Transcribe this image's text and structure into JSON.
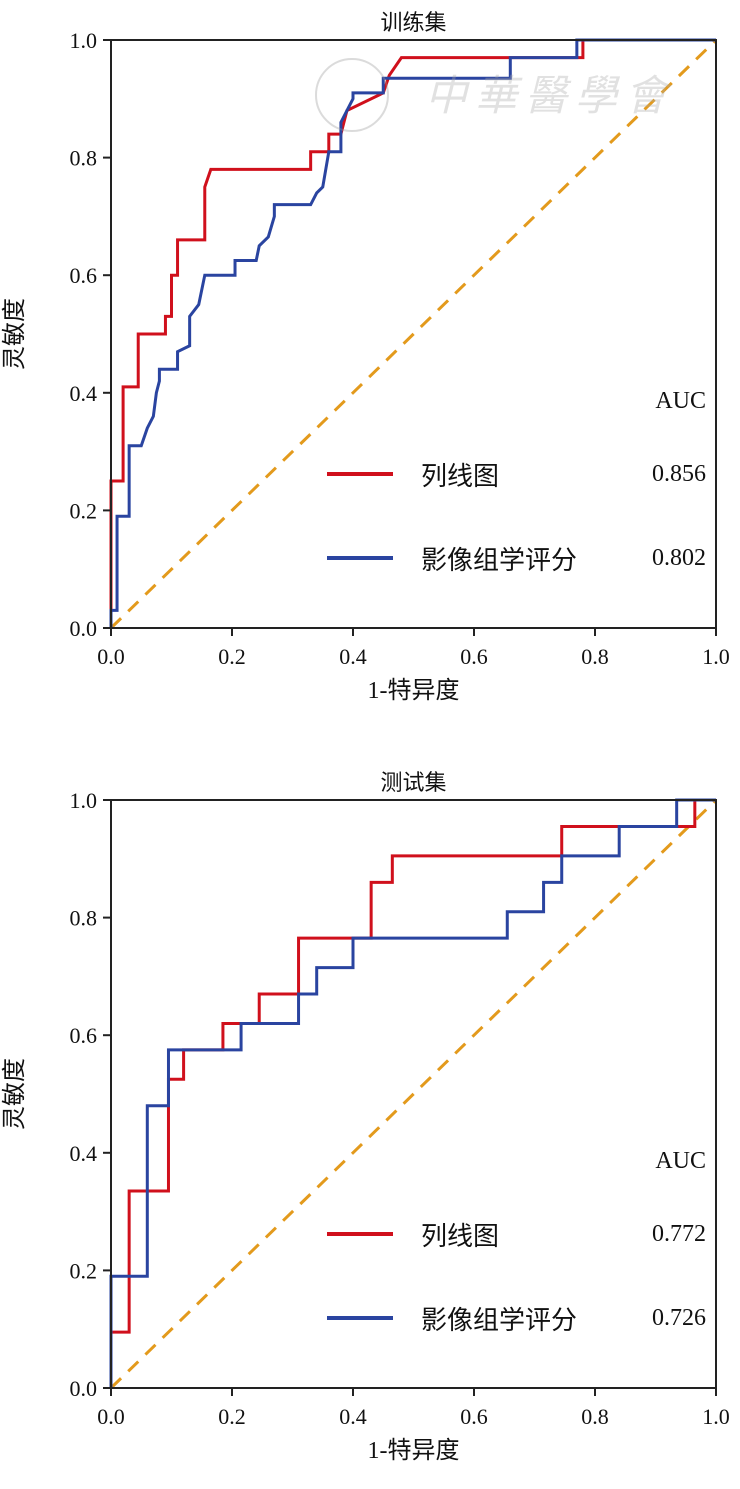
{
  "watermark": "中華醫學會",
  "chart_data": [
    {
      "type": "line",
      "title": "训练集",
      "xlabel": "1-特异度",
      "ylabel": "灵敏度",
      "xlim": [
        0,
        1
      ],
      "ylim": [
        0,
        1
      ],
      "xticks": [
        "0.0",
        "0.2",
        "0.4",
        "0.6",
        "0.8",
        "1.0"
      ],
      "yticks": [
        "0.0",
        "0.2",
        "0.4",
        "0.6",
        "0.8",
        "1.0"
      ],
      "legend_header": "AUC",
      "legend_position": "bottom-right",
      "series": [
        {
          "name": "列线图",
          "auc": "0.856",
          "color": "#d0101c",
          "points": [
            [
              0,
              0
            ],
            [
              0,
              0.25
            ],
            [
              0.02,
              0.25
            ],
            [
              0.02,
              0.41
            ],
            [
              0.045,
              0.41
            ],
            [
              0.045,
              0.5
            ],
            [
              0.09,
              0.5
            ],
            [
              0.09,
              0.53
            ],
            [
              0.1,
              0.53
            ],
            [
              0.1,
              0.6
            ],
            [
              0.11,
              0.6
            ],
            [
              0.11,
              0.66
            ],
            [
              0.155,
              0.66
            ],
            [
              0.155,
              0.75
            ],
            [
              0.165,
              0.78
            ],
            [
              0.33,
              0.78
            ],
            [
              0.33,
              0.81
            ],
            [
              0.36,
              0.81
            ],
            [
              0.36,
              0.84
            ],
            [
              0.38,
              0.84
            ],
            [
              0.39,
              0.88
            ],
            [
              0.45,
              0.91
            ],
            [
              0.46,
              0.94
            ],
            [
              0.48,
              0.97
            ],
            [
              0.78,
              0.97
            ],
            [
              0.78,
              1
            ],
            [
              1,
              1
            ]
          ]
        },
        {
          "name": "影像组学评分",
          "auc": "0.802",
          "color": "#2a44a0",
          "points": [
            [
              0,
              0
            ],
            [
              0,
              0.03
            ],
            [
              0.01,
              0.03
            ],
            [
              0.01,
              0.19
            ],
            [
              0.03,
              0.19
            ],
            [
              0.03,
              0.31
            ],
            [
              0.05,
              0.31
            ],
            [
              0.06,
              0.34
            ],
            [
              0.07,
              0.36
            ],
            [
              0.075,
              0.4
            ],
            [
              0.08,
              0.42
            ],
            [
              0.08,
              0.44
            ],
            [
              0.11,
              0.44
            ],
            [
              0.11,
              0.47
            ],
            [
              0.13,
              0.48
            ],
            [
              0.13,
              0.53
            ],
            [
              0.145,
              0.55
            ],
            [
              0.155,
              0.6
            ],
            [
              0.205,
              0.6
            ],
            [
              0.205,
              0.625
            ],
            [
              0.24,
              0.625
            ],
            [
              0.245,
              0.65
            ],
            [
              0.26,
              0.665
            ],
            [
              0.27,
              0.7
            ],
            [
              0.27,
              0.72
            ],
            [
              0.33,
              0.72
            ],
            [
              0.34,
              0.74
            ],
            [
              0.35,
              0.75
            ],
            [
              0.36,
              0.81
            ],
            [
              0.38,
              0.81
            ],
            [
              0.38,
              0.86
            ],
            [
              0.39,
              0.88
            ],
            [
              0.4,
              0.9
            ],
            [
              0.4,
              0.91
            ],
            [
              0.45,
              0.91
            ],
            [
              0.45,
              0.935
            ],
            [
              0.66,
              0.935
            ],
            [
              0.66,
              0.97
            ],
            [
              0.77,
              0.97
            ],
            [
              0.77,
              1
            ],
            [
              1,
              1
            ]
          ]
        }
      ],
      "reference_line": {
        "points": [
          [
            0,
            0
          ],
          [
            1,
            1
          ]
        ],
        "color": "#e39a1c",
        "style": "dashed"
      }
    },
    {
      "type": "line",
      "title": "测试集",
      "xlabel": "1-特异度",
      "ylabel": "灵敏度",
      "xlim": [
        0,
        1
      ],
      "ylim": [
        0,
        1
      ],
      "xticks": [
        "0.0",
        "0.2",
        "0.4",
        "0.6",
        "0.8",
        "1.0"
      ],
      "yticks": [
        "0.0",
        "0.2",
        "0.4",
        "0.6",
        "0.8",
        "1.0"
      ],
      "legend_header": "AUC",
      "legend_position": "bottom-right",
      "series": [
        {
          "name": "列线图",
          "auc": "0.772",
          "color": "#d0101c",
          "points": [
            [
              0,
              0
            ],
            [
              0,
              0.095
            ],
            [
              0.03,
              0.095
            ],
            [
              0.03,
              0.335
            ],
            [
              0.095,
              0.335
            ],
            [
              0.095,
              0.525
            ],
            [
              0.12,
              0.525
            ],
            [
              0.12,
              0.575
            ],
            [
              0.185,
              0.575
            ],
            [
              0.185,
              0.62
            ],
            [
              0.245,
              0.62
            ],
            [
              0.245,
              0.67
            ],
            [
              0.31,
              0.67
            ],
            [
              0.31,
              0.765
            ],
            [
              0.43,
              0.765
            ],
            [
              0.43,
              0.86
            ],
            [
              0.465,
              0.86
            ],
            [
              0.465,
              0.905
            ],
            [
              0.745,
              0.905
            ],
            [
              0.745,
              0.955
            ],
            [
              0.965,
              0.955
            ],
            [
              0.965,
              1
            ],
            [
              1,
              1
            ]
          ]
        },
        {
          "name": "影像组学评分",
          "auc": "0.726",
          "color": "#2a44a0",
          "points": [
            [
              0,
              0
            ],
            [
              0,
              0.19
            ],
            [
              0.06,
              0.19
            ],
            [
              0.06,
              0.48
            ],
            [
              0.095,
              0.48
            ],
            [
              0.095,
              0.575
            ],
            [
              0.215,
              0.575
            ],
            [
              0.215,
              0.62
            ],
            [
              0.31,
              0.62
            ],
            [
              0.31,
              0.67
            ],
            [
              0.34,
              0.67
            ],
            [
              0.34,
              0.715
            ],
            [
              0.4,
              0.715
            ],
            [
              0.4,
              0.765
            ],
            [
              0.655,
              0.765
            ],
            [
              0.655,
              0.81
            ],
            [
              0.715,
              0.81
            ],
            [
              0.715,
              0.86
            ],
            [
              0.745,
              0.86
            ],
            [
              0.745,
              0.905
            ],
            [
              0.84,
              0.905
            ],
            [
              0.84,
              0.955
            ],
            [
              0.935,
              0.955
            ],
            [
              0.935,
              1
            ],
            [
              1,
              1
            ]
          ]
        }
      ],
      "reference_line": {
        "points": [
          [
            0,
            0
          ],
          [
            1,
            1
          ]
        ],
        "color": "#e39a1c",
        "style": "dashed"
      }
    }
  ]
}
